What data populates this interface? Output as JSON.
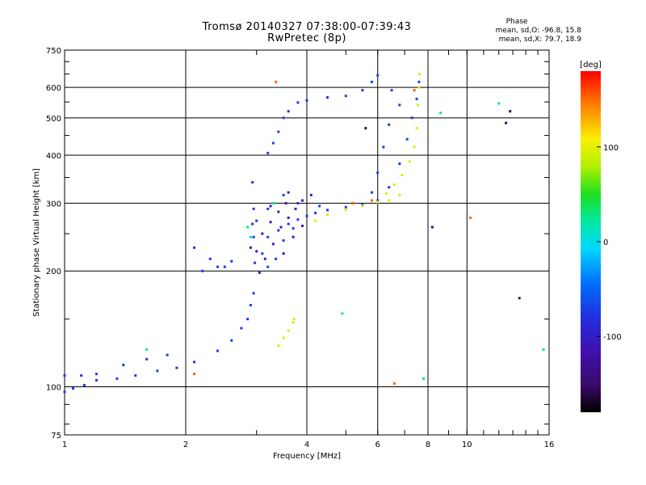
{
  "chart_data": {
    "type": "scatter",
    "title": "Tromsø 20140327 07:38:00-07:39:43",
    "subtitle": "RwPretec (8p)",
    "xlabel": "Frequency [MHz]",
    "ylabel": "Stationary phase Virtual Height [km]",
    "x_scale": "log",
    "y_scale": "log",
    "xlim": [
      1,
      16
    ],
    "ylim": [
      75,
      750
    ],
    "x_ticks": [
      1,
      2,
      4,
      6,
      8,
      10,
      16
    ],
    "y_ticks": [
      75,
      100,
      200,
      300,
      400,
      500,
      600,
      750
    ],
    "x_tick_labels": [
      "1",
      "2",
      "4",
      "6",
      "8",
      "10",
      "16"
    ],
    "y_tick_labels": [
      "75",
      "100",
      "200",
      "300",
      "400",
      "500",
      "600",
      "750"
    ],
    "grid": true,
    "phase_annotation": {
      "header": "Phase",
      "o_line": "mean, sd,O: -96.8, 15.8",
      "x_line": "mean, sd,X:  79.7, 18.9"
    },
    "colorbar": {
      "label": "[deg]",
      "range": [
        -180,
        180
      ],
      "tick_values": [
        100,
        0,
        -100
      ],
      "tick_labels": [
        "100",
        "0",
        "-100"
      ],
      "colors": [
        "#000000",
        "#5a0a8c",
        "#2020e0",
        "#0070ff",
        "#00d0ff",
        "#00e070",
        "#40e000",
        "#e0f000",
        "#ff9000",
        "#ff0000"
      ]
    },
    "series": [
      {
        "phase": -100,
        "points": [
          [
            1.0,
            97
          ],
          [
            1.05,
            99
          ],
          [
            1.12,
            101
          ],
          [
            1.2,
            104
          ],
          [
            1.35,
            105
          ],
          [
            1.5,
            107
          ],
          [
            1.7,
            110
          ],
          [
            1.9,
            112
          ],
          [
            2.1,
            116
          ],
          [
            2.4,
            124
          ],
          [
            2.6,
            132
          ],
          [
            2.75,
            142
          ],
          [
            2.85,
            150
          ],
          [
            2.9,
            163
          ],
          [
            2.95,
            175
          ],
          [
            2.97,
            210
          ],
          [
            2.95,
            245
          ],
          [
            2.93,
            265
          ],
          [
            2.95,
            290
          ],
          [
            2.93,
            340
          ],
          [
            1.0,
            107
          ],
          [
            1.1,
            107
          ],
          [
            1.2,
            108
          ],
          [
            1.4,
            114
          ],
          [
            1.6,
            118
          ],
          [
            1.8,
            121
          ],
          [
            2.1,
            230
          ],
          [
            2.2,
            200
          ],
          [
            2.4,
            205
          ],
          [
            2.6,
            212
          ],
          [
            3.0,
            270
          ],
          [
            3.2,
            245
          ],
          [
            3.4,
            255
          ],
          [
            3.6,
            265
          ],
          [
            3.8,
            272
          ],
          [
            4.0,
            278
          ],
          [
            4.2,
            283
          ],
          [
            4.5,
            288
          ],
          [
            5.0,
            293
          ],
          [
            5.5,
            298
          ],
          [
            6.0,
            305
          ],
          [
            6.4,
            330
          ],
          [
            6.8,
            380
          ],
          [
            7.1,
            440
          ],
          [
            7.3,
            500
          ],
          [
            7.5,
            560
          ],
          [
            7.6,
            620
          ],
          [
            3.2,
            405
          ],
          [
            3.3,
            430
          ],
          [
            3.4,
            460
          ],
          [
            3.5,
            500
          ],
          [
            3.6,
            520
          ],
          [
            3.8,
            548
          ],
          [
            4.0,
            555
          ],
          [
            4.5,
            565
          ],
          [
            5.0,
            570
          ],
          [
            5.5,
            590
          ],
          [
            5.8,
            620
          ],
          [
            6.0,
            645
          ],
          [
            6.5,
            590
          ],
          [
            6.8,
            540
          ],
          [
            6.4,
            480
          ],
          [
            6.2,
            420
          ],
          [
            6.0,
            360
          ],
          [
            5.8,
            320
          ],
          [
            3.1,
            222
          ],
          [
            3.2,
            205
          ],
          [
            3.35,
            215
          ],
          [
            3.5,
            240
          ],
          [
            3.7,
            258
          ],
          [
            3.2,
            290
          ],
          [
            3.5,
            315
          ],
          [
            3.8,
            300
          ],
          [
            4.3,
            295
          ],
          [
            2.3,
            215
          ],
          [
            2.5,
            205
          ]
        ]
      },
      {
        "phase": -120,
        "points": [
          [
            3.0,
            225
          ],
          [
            3.1,
            250
          ],
          [
            3.25,
            268
          ],
          [
            3.4,
            285
          ],
          [
            3.55,
            300
          ],
          [
            3.3,
            235
          ],
          [
            3.45,
            260
          ],
          [
            3.6,
            275
          ],
          [
            3.75,
            290
          ],
          [
            3.9,
            305
          ],
          [
            4.1,
            315
          ],
          [
            3.15,
            215
          ],
          [
            3.05,
            198
          ],
          [
            3.5,
            222
          ],
          [
            3.7,
            245
          ],
          [
            3.9,
            262
          ],
          [
            2.9,
            230
          ],
          [
            3.25,
            295
          ],
          [
            3.6,
            320
          ]
        ]
      },
      {
        "phase": 90,
        "points": [
          [
            3.4,
            128
          ],
          [
            3.5,
            134
          ],
          [
            3.6,
            140
          ],
          [
            3.7,
            147
          ],
          [
            3.72,
            150
          ],
          [
            4.2,
            270
          ],
          [
            4.5,
            280
          ],
          [
            5.0,
            288
          ],
          [
            5.5,
            295
          ],
          [
            6.0,
            302
          ],
          [
            6.3,
            318
          ],
          [
            6.6,
            335
          ],
          [
            6.9,
            355
          ],
          [
            7.2,
            385
          ],
          [
            7.4,
            420
          ],
          [
            7.5,
            470
          ],
          [
            7.55,
            540
          ],
          [
            7.6,
            600
          ],
          [
            7.62,
            650
          ],
          [
            6.4,
            305
          ],
          [
            6.8,
            315
          ]
        ]
      },
      {
        "phase": 20,
        "points": [
          [
            2.9,
            245
          ],
          [
            2.85,
            260
          ],
          [
            3.3,
            300
          ],
          [
            4.9,
            155
          ],
          [
            7.8,
            105
          ],
          [
            8.6,
            515
          ],
          [
            12,
            545
          ],
          [
            15.5,
            125
          ],
          [
            1.6,
            125
          ]
        ]
      },
      {
        "phase": 150,
        "points": [
          [
            5.2,
            300
          ],
          [
            5.8,
            305
          ],
          [
            7.4,
            590
          ],
          [
            10.2,
            275
          ],
          [
            6.6,
            102
          ],
          [
            3.35,
            620
          ],
          [
            2.1,
            108
          ]
        ]
      },
      {
        "phase": -150,
        "points": [
          [
            12.5,
            485
          ],
          [
            12.8,
            520
          ],
          [
            13.5,
            170
          ],
          [
            8.2,
            260
          ],
          [
            5.6,
            470
          ]
        ]
      }
    ]
  }
}
